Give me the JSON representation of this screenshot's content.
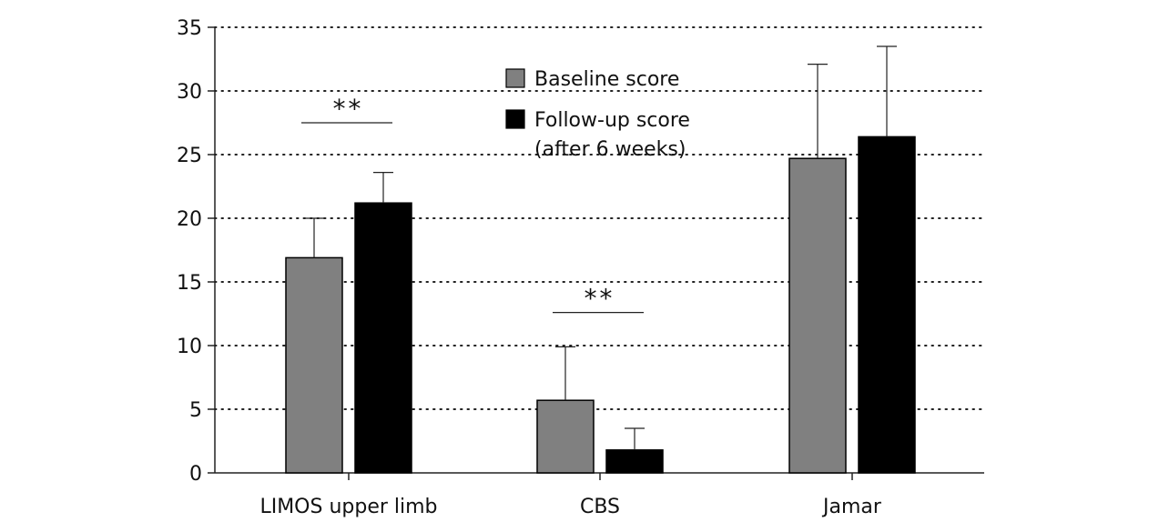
{
  "chart_data": {
    "type": "bar",
    "title": "",
    "xlabel": "",
    "ylabel": "",
    "categories": [
      "LIMOS upper limb",
      "CBS",
      "Jamar"
    ],
    "ylim": [
      0,
      35
    ],
    "yticks": [
      0,
      5,
      10,
      15,
      20,
      25,
      30,
      35
    ],
    "grid": "dotted horizontal",
    "legend_position": "top-center",
    "series": [
      {
        "name": "Baseline score",
        "color": "#808080",
        "values": [
          16.9,
          5.7,
          24.7
        ],
        "errors": [
          3.1,
          4.2,
          7.4
        ]
      },
      {
        "name": "Follow-up score (after 6 weeks)",
        "color": "#000000",
        "values": [
          21.2,
          1.8,
          26.4
        ],
        "errors": [
          2.4,
          1.7,
          7.1
        ]
      }
    ],
    "legend": {
      "entries": [
        {
          "lines": [
            "Baseline score"
          ],
          "color": "#808080"
        },
        {
          "lines": [
            "Follow-up score",
            "(after 6 weeks)"
          ],
          "color": "#000000"
        }
      ]
    },
    "annotations": [
      {
        "category": "LIMOS upper limb",
        "text": "**",
        "y": 27.5
      },
      {
        "category": "CBS",
        "text": "**",
        "y": 12.6
      }
    ]
  }
}
